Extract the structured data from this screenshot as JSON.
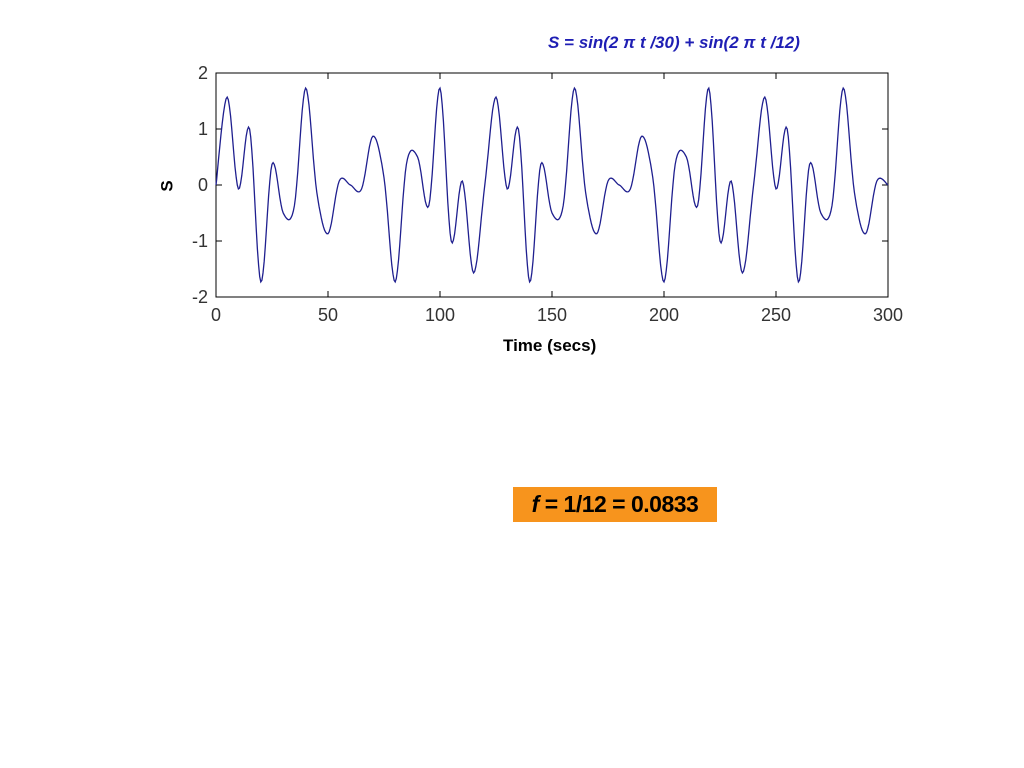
{
  "chart_data": {
    "type": "line",
    "title": "S = sin(2 π t /30) + sin(2 π t /12)",
    "xlabel": "Time (secs)",
    "ylabel": "S",
    "xlim": [
      0,
      300
    ],
    "ylim": [
      -2,
      2
    ],
    "xticks": [
      0,
      50,
      100,
      150,
      200,
      250,
      300
    ],
    "yticks": [
      -2,
      -1,
      0,
      1,
      2
    ],
    "grid": false,
    "line_color": "#1f1f8f",
    "series": [
      {
        "x": [
          0,
          5,
          10,
          15,
          20,
          25,
          30,
          35,
          40,
          45,
          50,
          55,
          60,
          65,
          70,
          75,
          80,
          85,
          90,
          95,
          100,
          105,
          110,
          115,
          120,
          125,
          130,
          135,
          140,
          145,
          150,
          155,
          160,
          165,
          170,
          175,
          180,
          185,
          190,
          195,
          200,
          205,
          210,
          215,
          220,
          225,
          230,
          235,
          240,
          245,
          250,
          255,
          260,
          265,
          270,
          275,
          280,
          285,
          290,
          295,
          300
        ],
        "y": [
          0,
          1.57,
          -0.07,
          1.0,
          -1.73,
          0.37,
          -0.5,
          -0.37,
          1.73,
          -0.13,
          -0.87,
          0.07,
          0,
          -0.07,
          0.87,
          0.13,
          -1.73,
          0.37,
          0.5,
          -0.37,
          1.73,
          -1.0,
          0.07,
          -1.57,
          0,
          1.57,
          -0.07,
          1.0,
          -1.73,
          0.37,
          -0.5,
          -0.37,
          1.73,
          -0.13,
          -0.87,
          0.07,
          0,
          -0.07,
          0.87,
          0.13,
          -1.73,
          0.37,
          0.5,
          -0.37,
          1.73,
          -1.0,
          0.07,
          -1.57,
          0,
          1.57,
          -0.07,
          1.0,
          -1.73,
          0.37,
          -0.5,
          -0.37,
          1.73,
          -0.13,
          -0.87,
          0.07,
          0
        ]
      }
    ]
  },
  "formula": {
    "f": "f",
    "expr": " = 1/12 = 0.0833"
  }
}
